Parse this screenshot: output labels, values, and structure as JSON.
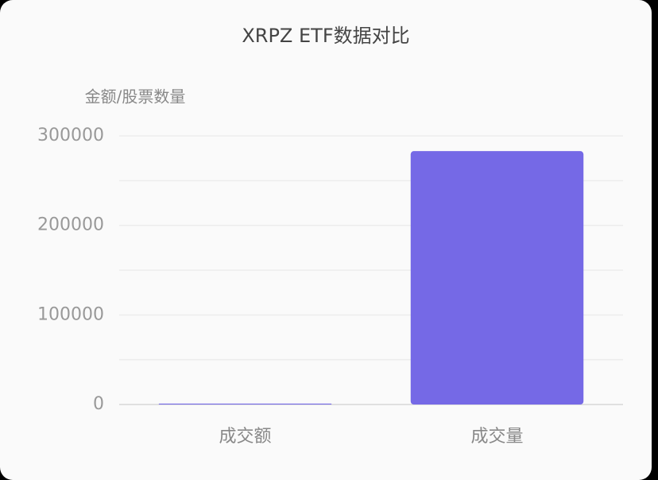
{
  "chart_data": {
    "type": "bar",
    "title": "XRPZ ETF数据对比",
    "y_label": "金额/股票数量",
    "categories": [
      "成交额",
      "成交量"
    ],
    "values": [
      1000,
      283000
    ],
    "color": "#7569e6",
    "ylim": [
      0,
      300000
    ],
    "yticks": [
      0,
      100000,
      200000,
      300000
    ],
    "minor_yticks": [
      50000,
      150000,
      250000
    ],
    "grid": true
  }
}
